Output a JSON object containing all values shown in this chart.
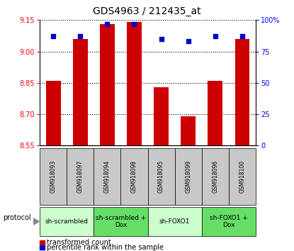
{
  "title": "GDS4963 / 212435_at",
  "samples": [
    "GSM918093",
    "GSM918097",
    "GSM918094",
    "GSM918098",
    "GSM918095",
    "GSM918099",
    "GSM918096",
    "GSM918100"
  ],
  "transformed_counts": [
    8.86,
    9.06,
    9.13,
    9.14,
    8.83,
    8.69,
    8.86,
    9.06
  ],
  "percentile_ranks": [
    87,
    87,
    97,
    97,
    85,
    83,
    87,
    87
  ],
  "ylim_left": [
    8.55,
    9.15
  ],
  "ylim_right": [
    0,
    100
  ],
  "yticks_left": [
    8.55,
    8.7,
    8.85,
    9.0,
    9.15
  ],
  "yticks_right": [
    0,
    25,
    50,
    75,
    100
  ],
  "ytick_right_labels": [
    "0",
    "25",
    "50",
    "75",
    "100%"
  ],
  "bar_color": "#cc0000",
  "dot_color": "#0000cc",
  "protocol_groups": [
    {
      "label": "sh-scrambled",
      "start": 0,
      "end": 2,
      "color": "#ccffcc"
    },
    {
      "label": "sh-scrambled +\nDox",
      "start": 2,
      "end": 4,
      "color": "#66dd66"
    },
    {
      "label": "sh-FOXO1",
      "start": 4,
      "end": 6,
      "color": "#ccffcc"
    },
    {
      "label": "sh-FOXO1 +\nDox",
      "start": 6,
      "end": 8,
      "color": "#66dd66"
    }
  ],
  "protocol_label": "protocol",
  "legend_bar_label": "transformed count",
  "legend_dot_label": "percentile rank within the sample",
  "title_fontsize": 10,
  "tick_label_fontsize": 7,
  "sample_fontsize": 5.5,
  "proto_fontsize": 6.5,
  "legend_fontsize": 7
}
